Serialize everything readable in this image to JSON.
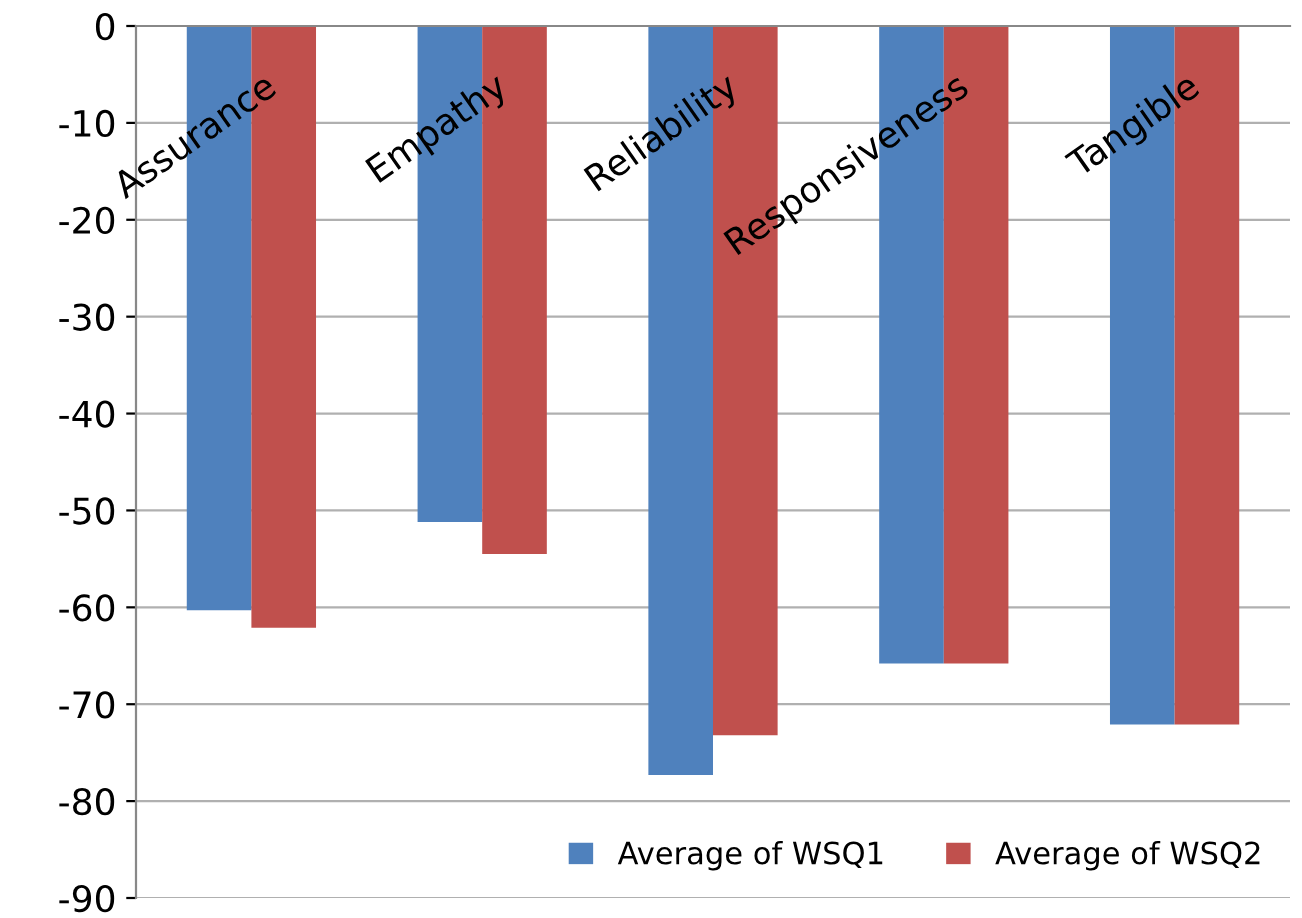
{
  "chart_data": {
    "type": "bar",
    "categories": [
      "Assurance",
      "Empathy",
      "Reliability",
      "Responsiveness",
      "Tangible"
    ],
    "series": [
      {
        "name": "Average of WSQ1",
        "color": "#4f81bd",
        "values": [
          -60.3,
          -51.2,
          -77.3,
          -65.8,
          -72.1
        ]
      },
      {
        "name": "Average of WSQ2",
        "color": "#c0504d",
        "values": [
          -62.1,
          -54.5,
          -73.2,
          -65.8,
          -72.1
        ]
      }
    ],
    "ylim": [
      -90,
      0
    ],
    "yticks": [
      -90,
      -80,
      -70,
      -60,
      -50,
      -40,
      -30,
      -20,
      -10,
      0
    ],
    "grid": "y",
    "legend": "bottom right"
  }
}
